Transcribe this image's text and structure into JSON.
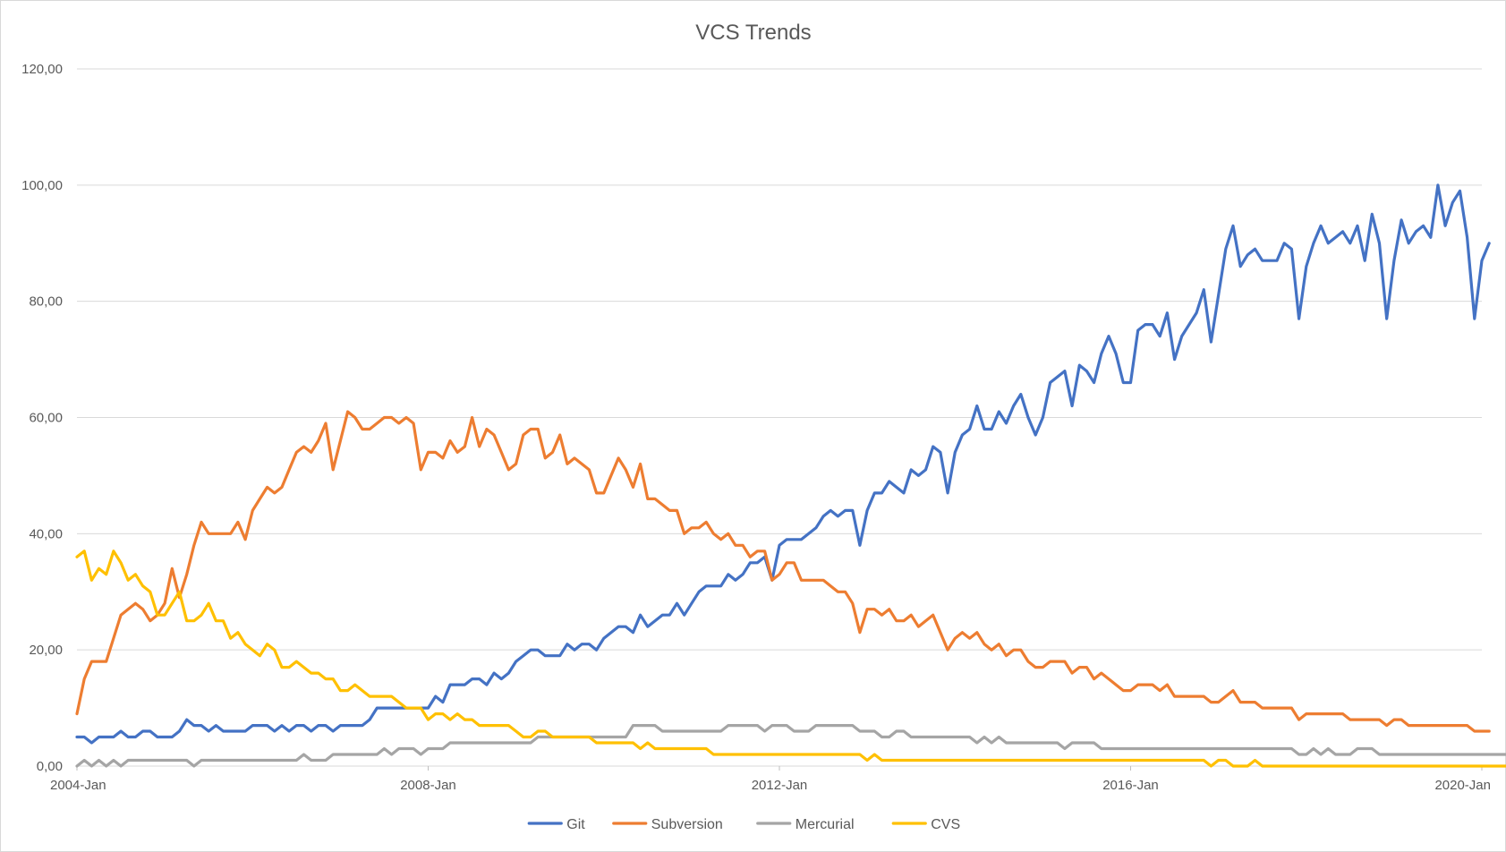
{
  "chart_data": {
    "type": "line",
    "title": "VCS Trends",
    "xlabel": "",
    "ylabel": "",
    "ylim": [
      0,
      120
    ],
    "y_ticks": [
      "0,00",
      "20,00",
      "40,00",
      "60,00",
      "80,00",
      "100,00",
      "120,00"
    ],
    "x_ticks": [
      "2004-Jan",
      "2008-Jan",
      "2012-Jan",
      "2016-Jan",
      "2020-Jan"
    ],
    "x_start": "2004-01",
    "grid": "horizontal",
    "legend_position": "bottom",
    "series": [
      {
        "name": "Git",
        "color": "#4472C4",
        "values": [
          5,
          5,
          4,
          5,
          5,
          5,
          6,
          5,
          5,
          6,
          6,
          5,
          5,
          5,
          6,
          8,
          7,
          7,
          6,
          7,
          6,
          6,
          6,
          6,
          7,
          7,
          7,
          6,
          7,
          6,
          7,
          7,
          6,
          7,
          7,
          6,
          7,
          7,
          7,
          7,
          8,
          10,
          10,
          10,
          10,
          10,
          10,
          10,
          10,
          12,
          11,
          14,
          14,
          14,
          15,
          15,
          14,
          16,
          15,
          16,
          18,
          19,
          20,
          20,
          19,
          19,
          19,
          21,
          20,
          21,
          21,
          20,
          22,
          23,
          24,
          24,
          23,
          26,
          24,
          25,
          26,
          26,
          28,
          26,
          28,
          30,
          31,
          31,
          31,
          33,
          32,
          33,
          35,
          35,
          36,
          32,
          38,
          39,
          39,
          39,
          40,
          41,
          43,
          44,
          43,
          44,
          44,
          38,
          44,
          47,
          47,
          49,
          48,
          47,
          51,
          50,
          51,
          55,
          54,
          47,
          54,
          57,
          58,
          62,
          58,
          58,
          61,
          59,
          62,
          64,
          60,
          57,
          60,
          66,
          67,
          68,
          62,
          69,
          68,
          66,
          71,
          74,
          71,
          66,
          66,
          75,
          76,
          76,
          74,
          78,
          70,
          74,
          76,
          78,
          82,
          73,
          81,
          89,
          93,
          86,
          88,
          89,
          87,
          87,
          87,
          90,
          89,
          77,
          86,
          90,
          93,
          90,
          91,
          92,
          90,
          93,
          87,
          95,
          90,
          77,
          87,
          94,
          90,
          92,
          93,
          91,
          100,
          93,
          97,
          99,
          91,
          77,
          87,
          90
        ]
      },
      {
        "name": "Subversion",
        "color": "#ED7D31",
        "values": [
          9,
          15,
          18,
          18,
          18,
          22,
          26,
          27,
          28,
          27,
          25,
          26,
          28,
          34,
          29,
          33,
          38,
          42,
          40,
          40,
          40,
          40,
          42,
          39,
          44,
          46,
          48,
          47,
          48,
          51,
          54,
          55,
          54,
          56,
          59,
          51,
          56,
          61,
          60,
          58,
          58,
          59,
          60,
          60,
          59,
          60,
          59,
          51,
          54,
          54,
          53,
          56,
          54,
          55,
          60,
          55,
          58,
          57,
          54,
          51,
          52,
          57,
          58,
          58,
          53,
          54,
          57,
          52,
          53,
          52,
          51,
          47,
          47,
          50,
          53,
          51,
          48,
          52,
          46,
          46,
          45,
          44,
          44,
          40,
          41,
          41,
          42,
          40,
          39,
          40,
          38,
          38,
          36,
          37,
          37,
          32,
          33,
          35,
          35,
          32,
          32,
          32,
          32,
          31,
          30,
          30,
          28,
          23,
          27,
          27,
          26,
          27,
          25,
          25,
          26,
          24,
          25,
          26,
          23,
          20,
          22,
          23,
          22,
          23,
          21,
          20,
          21,
          19,
          20,
          20,
          18,
          17,
          17,
          18,
          18,
          18,
          16,
          17,
          17,
          15,
          16,
          15,
          14,
          13,
          13,
          14,
          14,
          14,
          13,
          14,
          12,
          12,
          12,
          12,
          12,
          11,
          11,
          12,
          13,
          11,
          11,
          11,
          10,
          10,
          10,
          10,
          10,
          8,
          9,
          9,
          9,
          9,
          9,
          9,
          8,
          8,
          8,
          8,
          8,
          7,
          8,
          8,
          7,
          7,
          7,
          7,
          7,
          7,
          7,
          7,
          7,
          6,
          6,
          6
        ]
      },
      {
        "name": "Mercurial",
        "color": "#A5A5A5",
        "values": [
          0,
          1,
          0,
          1,
          0,
          1,
          0,
          1,
          1,
          1,
          1,
          1,
          1,
          1,
          1,
          1,
          0,
          1,
          1,
          1,
          1,
          1,
          1,
          1,
          1,
          1,
          1,
          1,
          1,
          1,
          1,
          2,
          1,
          1,
          1,
          2,
          2,
          2,
          2,
          2,
          2,
          2,
          3,
          2,
          3,
          3,
          3,
          2,
          3,
          3,
          3,
          4,
          4,
          4,
          4,
          4,
          4,
          4,
          4,
          4,
          4,
          4,
          4,
          5,
          5,
          5,
          5,
          5,
          5,
          5,
          5,
          5,
          5,
          5,
          5,
          5,
          7,
          7,
          7,
          7,
          6,
          6,
          6,
          6,
          6,
          6,
          6,
          6,
          6,
          7,
          7,
          7,
          7,
          7,
          6,
          7,
          7,
          7,
          6,
          6,
          6,
          7,
          7,
          7,
          7,
          7,
          7,
          6,
          6,
          6,
          5,
          5,
          6,
          6,
          5,
          5,
          5,
          5,
          5,
          5,
          5,
          5,
          5,
          4,
          5,
          4,
          5,
          4,
          4,
          4,
          4,
          4,
          4,
          4,
          4,
          3,
          4,
          4,
          4,
          4,
          3,
          3,
          3,
          3,
          3,
          3,
          3,
          3,
          3,
          3,
          3,
          3,
          3,
          3,
          3,
          3,
          3,
          3,
          3,
          3,
          3,
          3,
          3,
          3,
          3,
          3,
          3,
          2,
          2,
          3,
          2,
          3,
          2,
          2,
          2,
          3,
          3,
          3,
          2,
          2,
          2,
          2,
          2,
          2,
          2,
          2,
          2,
          2,
          2,
          2,
          2,
          2,
          2,
          2,
          2,
          2,
          2,
          2,
          1,
          2,
          2
        ]
      },
      {
        "name": "CVS",
        "color": "#FFC000",
        "values": [
          36,
          37,
          32,
          34,
          33,
          37,
          35,
          32,
          33,
          31,
          30,
          26,
          26,
          28,
          30,
          25,
          25,
          26,
          28,
          25,
          25,
          22,
          23,
          21,
          20,
          19,
          21,
          20,
          17,
          17,
          18,
          17,
          16,
          16,
          15,
          15,
          13,
          13,
          14,
          13,
          12,
          12,
          12,
          12,
          11,
          10,
          10,
          10,
          8,
          9,
          9,
          8,
          9,
          8,
          8,
          7,
          7,
          7,
          7,
          7,
          6,
          5,
          5,
          6,
          6,
          5,
          5,
          5,
          5,
          5,
          5,
          4,
          4,
          4,
          4,
          4,
          4,
          3,
          4,
          3,
          3,
          3,
          3,
          3,
          3,
          3,
          3,
          2,
          2,
          2,
          2,
          2,
          2,
          2,
          2,
          2,
          2,
          2,
          2,
          2,
          2,
          2,
          2,
          2,
          2,
          2,
          2,
          2,
          1,
          2,
          1,
          1,
          1,
          1,
          1,
          1,
          1,
          1,
          1,
          1,
          1,
          1,
          1,
          1,
          1,
          1,
          1,
          1,
          1,
          1,
          1,
          1,
          1,
          1,
          1,
          1,
          1,
          1,
          1,
          1,
          1,
          1,
          1,
          1,
          1,
          1,
          1,
          1,
          1,
          1,
          1,
          1,
          1,
          1,
          1,
          0,
          1,
          1,
          0,
          0,
          0,
          1,
          0,
          0,
          0,
          0,
          0,
          0,
          0,
          0,
          0,
          0,
          0,
          0,
          0,
          0,
          0,
          0,
          0,
          0,
          0,
          0,
          0,
          0,
          0,
          0,
          0,
          0,
          0,
          0,
          0,
          0,
          0,
          0,
          0,
          0,
          0,
          0,
          0,
          0,
          0
        ]
      }
    ]
  }
}
